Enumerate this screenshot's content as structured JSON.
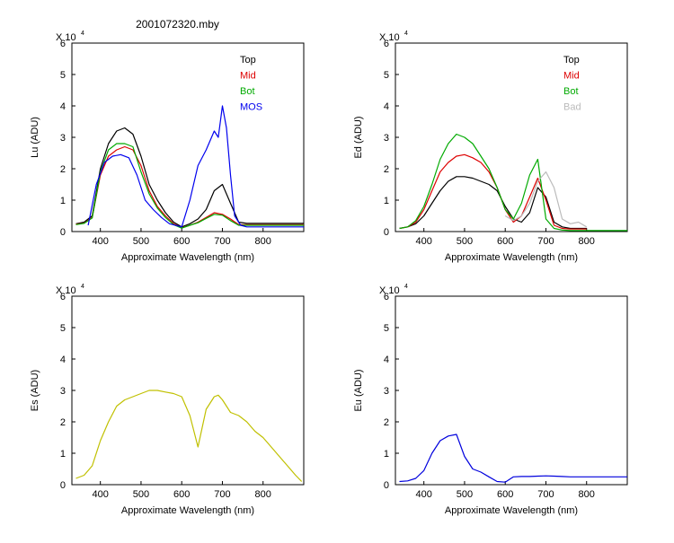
{
  "figure": {
    "title": "2001072320.mby"
  },
  "colors": {
    "Top": "#000000",
    "Mid": "#dd0000",
    "Bot": "#00aa00",
    "MOS": "#0000ee",
    "Bad": "#bbbbbb",
    "Es": "#c0c000",
    "Eu": "#0000dd"
  },
  "chart_data": [
    {
      "id": "lu",
      "type": "line",
      "xlabel": "Approximate Wavelength (nm)",
      "ylabel": "Lu (ADU)",
      "exponent_label": "X 10",
      "exponent": "4",
      "xlim": [
        330,
        900
      ],
      "ylim": [
        0,
        60000
      ],
      "xticks": [
        400,
        500,
        600,
        700,
        800
      ],
      "yticks": [
        0,
        10000,
        20000,
        30000,
        40000,
        50000,
        60000
      ],
      "ytick_labels": [
        "0",
        "1",
        "2",
        "3",
        "4",
        "5",
        "6"
      ],
      "legend": [
        "Top",
        "Mid",
        "Bot",
        "MOS"
      ],
      "legend_position": "top-right",
      "series": [
        {
          "name": "Top",
          "color": "#000000",
          "x": [
            340,
            360,
            380,
            400,
            420,
            440,
            460,
            480,
            500,
            520,
            540,
            560,
            580,
            600,
            620,
            640,
            660,
            680,
            700,
            720,
            740,
            760,
            780,
            800,
            820,
            840,
            860,
            880,
            900
          ],
          "y": [
            2500,
            3000,
            5000,
            20000,
            28000,
            32000,
            33000,
            31000,
            24000,
            15000,
            10000,
            6000,
            3000,
            1500,
            2500,
            4000,
            7000,
            13000,
            15000,
            9000,
            3000,
            2600,
            2600,
            2600,
            2600,
            2600,
            2600,
            2600,
            2600
          ]
        },
        {
          "name": "Mid",
          "color": "#dd0000",
          "x": [
            340,
            360,
            380,
            400,
            420,
            440,
            460,
            480,
            500,
            520,
            540,
            560,
            580,
            600,
            620,
            640,
            660,
            680,
            700,
            720,
            740,
            760,
            780,
            800,
            820,
            840,
            860,
            880,
            900
          ],
          "y": [
            2300,
            2700,
            4500,
            18000,
            24000,
            26000,
            27000,
            26000,
            21000,
            13000,
            8000,
            5000,
            2500,
            1200,
            2000,
            3000,
            4500,
            6000,
            5500,
            4000,
            2200,
            2200,
            2200,
            2200,
            2200,
            2200,
            2200,
            2200,
            2200
          ]
        },
        {
          "name": "Bot",
          "color": "#00aa00",
          "x": [
            340,
            360,
            380,
            400,
            420,
            440,
            460,
            480,
            500,
            520,
            540,
            560,
            580,
            600,
            620,
            640,
            660,
            680,
            700,
            720,
            740,
            760,
            780,
            800,
            820,
            840,
            860,
            880,
            900
          ],
          "y": [
            2200,
            2600,
            4300,
            19000,
            26000,
            28000,
            28000,
            27000,
            19000,
            12000,
            7500,
            4500,
            2200,
            1100,
            2000,
            2800,
            4200,
            5500,
            5200,
            3500,
            2000,
            2000,
            2000,
            2000,
            2000,
            2000,
            2000,
            2000,
            2000
          ]
        },
        {
          "name": "MOS",
          "color": "#0000ee",
          "x": [
            370,
            390,
            410,
            430,
            450,
            470,
            490,
            510,
            530,
            550,
            570,
            600,
            620,
            640,
            660,
            680,
            690,
            700,
            710,
            720,
            730,
            745,
            760,
            800,
            850,
            900
          ],
          "y": [
            2000,
            15000,
            22000,
            24000,
            24500,
            23500,
            18000,
            10000,
            7000,
            4500,
            2500,
            1500,
            10000,
            21000,
            26000,
            32000,
            30000,
            40000,
            33000,
            18000,
            5000,
            2000,
            1500,
            1500,
            1500,
            1500
          ]
        }
      ]
    },
    {
      "id": "ed",
      "type": "line",
      "xlabel": "Approximate Wavelength (nm)",
      "ylabel": "Ed (ADU)",
      "exponent_label": "X 10",
      "exponent": "4",
      "xlim": [
        330,
        900
      ],
      "ylim": [
        0,
        60000
      ],
      "xticks": [
        400,
        500,
        600,
        700,
        800
      ],
      "yticks": [
        0,
        10000,
        20000,
        30000,
        40000,
        50000,
        60000
      ],
      "ytick_labels": [
        "0",
        "1",
        "2",
        "3",
        "4",
        "5",
        "6"
      ],
      "legend": [
        "Top",
        "Mid",
        "Bot",
        "Bad"
      ],
      "legend_position": "top-right",
      "series": [
        {
          "name": "Top",
          "color": "#000000",
          "x": [
            340,
            360,
            380,
            400,
            420,
            440,
            460,
            480,
            500,
            520,
            540,
            560,
            580,
            600,
            620,
            640,
            660,
            680,
            700,
            720,
            740,
            760,
            780,
            800
          ],
          "y": [
            1000,
            1500,
            2500,
            5000,
            9000,
            13000,
            16000,
            17500,
            17500,
            17000,
            16000,
            15000,
            13000,
            8000,
            4000,
            3000,
            6000,
            14000,
            11000,
            3000,
            1500,
            1000,
            1000,
            1000
          ]
        },
        {
          "name": "Mid",
          "color": "#dd0000",
          "x": [
            340,
            360,
            380,
            400,
            420,
            440,
            460,
            480,
            500,
            520,
            540,
            560,
            580,
            600,
            620,
            640,
            660,
            680,
            700,
            720,
            740,
            760,
            780,
            800
          ],
          "y": [
            1000,
            1500,
            3000,
            7000,
            13000,
            19000,
            22000,
            24000,
            24500,
            23500,
            22000,
            19000,
            14000,
            7000,
            3000,
            5000,
            11000,
            17000,
            10000,
            2000,
            1000,
            800,
            800,
            800
          ]
        },
        {
          "name": "Bot",
          "color": "#00aa00",
          "x": [
            340,
            360,
            380,
            400,
            420,
            440,
            460,
            480,
            500,
            520,
            540,
            560,
            580,
            600,
            620,
            640,
            660,
            680,
            700,
            720,
            740,
            760,
            780,
            800,
            850,
            900
          ],
          "y": [
            1000,
            1500,
            3500,
            8000,
            15000,
            23000,
            28000,
            31000,
            30000,
            28000,
            24000,
            20000,
            14000,
            7000,
            4000,
            9000,
            18000,
            23000,
            4000,
            1000,
            500,
            300,
            300,
            300,
            300,
            300
          ]
        },
        {
          "name": "Bad",
          "color": "#bbbbbb",
          "x": [
            600,
            620,
            640,
            660,
            680,
            700,
            720,
            740,
            760,
            780,
            800
          ],
          "y": [
            5000,
            3500,
            5000,
            9000,
            16000,
            19000,
            14000,
            4000,
            2500,
            3000,
            1500
          ]
        }
      ]
    },
    {
      "id": "es",
      "type": "line",
      "xlabel": "Approximate Wavelength (nm)",
      "ylabel": "Es (ADU)",
      "exponent_label": "X 10",
      "exponent": "4",
      "xlim": [
        330,
        900
      ],
      "ylim": [
        0,
        60000
      ],
      "xticks": [
        400,
        500,
        600,
        700,
        800
      ],
      "yticks": [
        0,
        10000,
        20000,
        30000,
        40000,
        50000,
        60000
      ],
      "ytick_labels": [
        "0",
        "1",
        "2",
        "3",
        "4",
        "5",
        "6"
      ],
      "legend": [],
      "legend_position": "none",
      "series": [
        {
          "name": "",
          "color": "#c0c000",
          "x": [
            340,
            360,
            380,
            400,
            420,
            440,
            460,
            480,
            500,
            520,
            540,
            560,
            580,
            600,
            620,
            640,
            660,
            680,
            690,
            700,
            720,
            740,
            760,
            780,
            800,
            820,
            840,
            860,
            880,
            895
          ],
          "y": [
            2000,
            3000,
            6000,
            14000,
            20000,
            25000,
            27000,
            28000,
            29000,
            30000,
            30000,
            29500,
            29000,
            28000,
            22000,
            12000,
            24000,
            28000,
            28500,
            27000,
            23000,
            22000,
            20000,
            17000,
            15000,
            12000,
            9000,
            6000,
            3000,
            1000
          ]
        }
      ]
    },
    {
      "id": "eu",
      "type": "line",
      "xlabel": "Approximate Wavelength (nm)",
      "ylabel": "Eu (ADU)",
      "exponent_label": "X 10",
      "exponent": "4",
      "xlim": [
        330,
        900
      ],
      "ylim": [
        0,
        60000
      ],
      "xticks": [
        400,
        500,
        600,
        700,
        800
      ],
      "yticks": [
        0,
        10000,
        20000,
        30000,
        40000,
        50000,
        60000
      ],
      "ytick_labels": [
        "0",
        "1",
        "2",
        "3",
        "4",
        "5",
        "6"
      ],
      "legend": [],
      "legend_position": "none",
      "series": [
        {
          "name": "",
          "color": "#0000dd",
          "x": [
            340,
            360,
            380,
            400,
            420,
            440,
            460,
            480,
            500,
            520,
            540,
            560,
            580,
            600,
            620,
            640,
            660,
            680,
            700,
            720,
            740,
            760,
            780,
            800,
            850,
            900
          ],
          "y": [
            1000,
            1200,
            2000,
            4500,
            10000,
            14000,
            15500,
            16000,
            9000,
            5000,
            4000,
            2500,
            1000,
            800,
            2500,
            2600,
            2600,
            2700,
            2800,
            2700,
            2600,
            2500,
            2500,
            2500,
            2500,
            2500
          ]
        }
      ]
    }
  ]
}
